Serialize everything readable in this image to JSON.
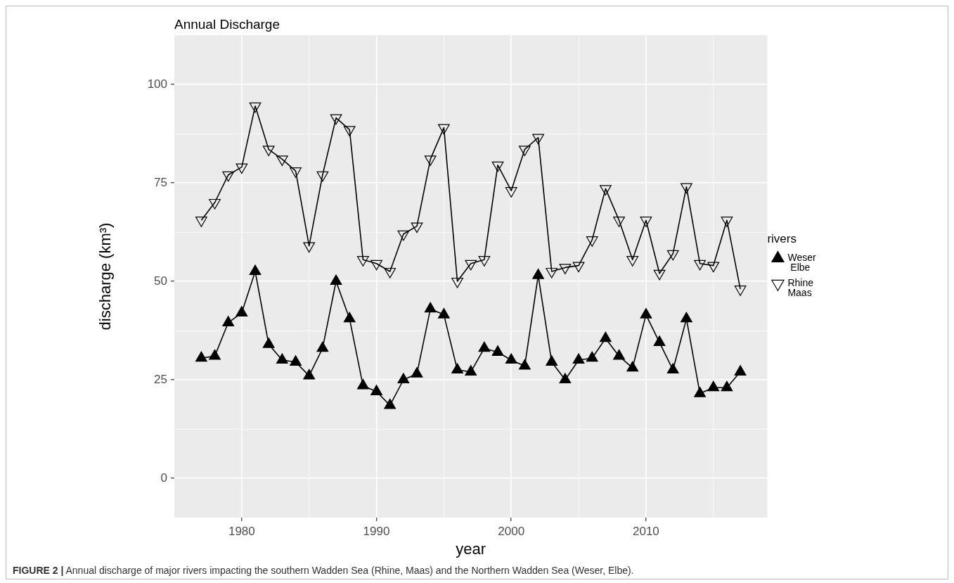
{
  "chart_data": {
    "type": "line",
    "title": "Annual Discharge",
    "xlabel": "year",
    "ylabel": "discharge (km³)",
    "legend_title": "rivers",
    "x": [
      1977,
      1978,
      1979,
      1980,
      1981,
      1982,
      1983,
      1984,
      1985,
      1986,
      1987,
      1988,
      1989,
      1990,
      1991,
      1992,
      1993,
      1994,
      1995,
      1996,
      1997,
      1998,
      1999,
      2000,
      2001,
      2002,
      2003,
      2004,
      2005,
      2006,
      2007,
      2008,
      2009,
      2010,
      2011,
      2012,
      2013,
      2014,
      2015,
      2016,
      2017
    ],
    "series": [
      {
        "name": "Weser\n Elbe",
        "color": "#000000",
        "marker": "triangle",
        "values": [
          30.5,
          31,
          39.5,
          42,
          52.5,
          34,
          30,
          29.5,
          26,
          33,
          50,
          40.5,
          23.5,
          22,
          18.5,
          25,
          26.5,
          43,
          41.5,
          27.5,
          27,
          33,
          32,
          30,
          28.5,
          51.5,
          29.5,
          25,
          30,
          30.5,
          35.5,
          31,
          28,
          41.5,
          34.5,
          27.5,
          40.5,
          21.5,
          23,
          23,
          27
        ]
      },
      {
        "name": "Rhine\nMaas",
        "color": "#000000",
        "marker": "triangle-down",
        "values": [
          65.5,
          70,
          77,
          79,
          94.5,
          83.5,
          81,
          78,
          59,
          77,
          91.5,
          88.5,
          55.5,
          54.5,
          52.5,
          62,
          64,
          81,
          89,
          50,
          54.5,
          55.5,
          79.5,
          73,
          83.5,
          86.5,
          52.5,
          53.5,
          54,
          60.5,
          73.5,
          65.5,
          55.5,
          65.5,
          52,
          57,
          74,
          54.5,
          54,
          65.5,
          48
        ]
      }
    ],
    "xlim": [
      1975,
      2019
    ],
    "xticks": [
      1980,
      {
        "value": 1985,
        "label": null
      },
      1990,
      {
        "value": 1995,
        "label": null
      },
      2000,
      {
        "value": 2005,
        "label": null
      },
      2010,
      {
        "value": 2015,
        "label": null
      }
    ],
    "ylim": [
      -10,
      112.5
    ],
    "yticks": [
      0,
      {
        "value": 12.5,
        "label": null
      },
      25,
      {
        "value": 37.5,
        "label": null
      },
      50,
      {
        "value": 62.5,
        "label": null
      },
      75,
      {
        "value": 87.5,
        "label": null
      },
      100
    ],
    "grid": true,
    "legend": "right",
    "annotations": [
      "FIGURE 2 | Annual discharge of major rivers impacting the southern Wadden Sea (Rhine, Maas) and the Northern Wadden Sea (Weser, Elbe)."
    ]
  }
}
